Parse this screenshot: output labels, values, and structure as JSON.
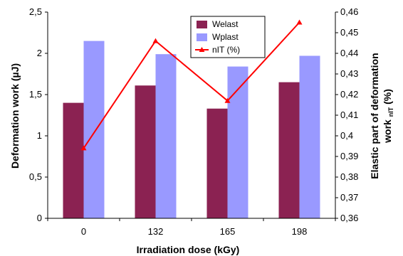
{
  "chart_data": {
    "type": "bar",
    "categories": [
      "0",
      "132",
      "165",
      "198"
    ],
    "series": [
      {
        "name": "Welast",
        "kind": "bar",
        "axis": "left",
        "color": "#8b2252",
        "values": [
          1.4,
          1.61,
          1.33,
          1.65
        ]
      },
      {
        "name": "Wplast",
        "kind": "bar",
        "axis": "left",
        "color": "#9999ff",
        "values": [
          2.15,
          1.99,
          1.84,
          1.97
        ]
      },
      {
        "name": "nIT (%)",
        "kind": "line",
        "axis": "right",
        "color": "#ff0000",
        "values": [
          0.394,
          0.446,
          0.417,
          0.455
        ]
      }
    ],
    "xlabel": "Irradiation dose (kGy)",
    "ylabel": "Deformation work (µJ)",
    "y2label_line1": "Elastic part of deformation",
    "y2label_line2": "work",
    "y2label_sub": "nIT",
    "y2label_unit": "(%)",
    "ylim": [
      0,
      2.5
    ],
    "y2lim": [
      0.36,
      0.46
    ],
    "yticks": [
      "0",
      "0,5",
      "1",
      "1,5",
      "2",
      "2,5"
    ],
    "y2ticks": [
      "0,36",
      "0,37",
      "0,38",
      "0,39",
      "0,4",
      "0,41",
      "0,42",
      "0,43",
      "0,44",
      "0,45",
      "0,46"
    ],
    "grid": false,
    "legend_position": "top-center"
  }
}
